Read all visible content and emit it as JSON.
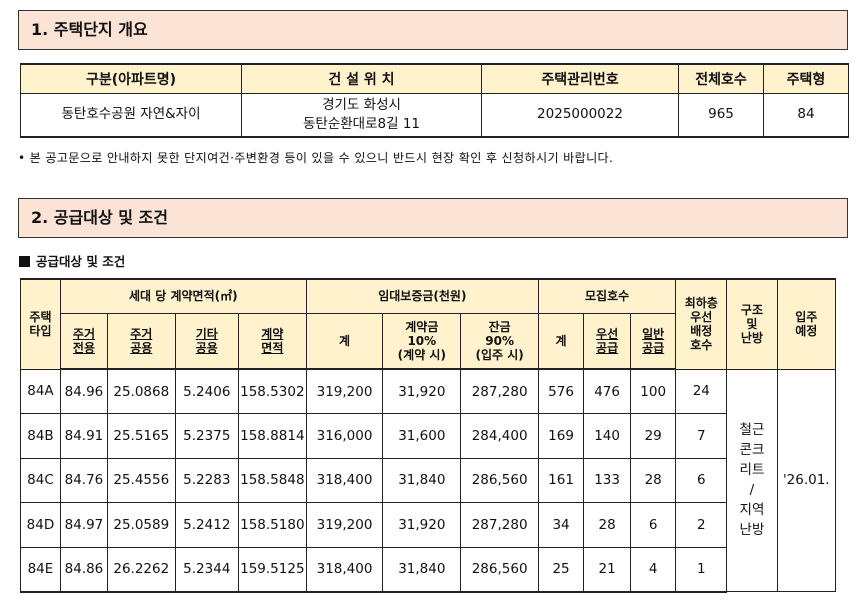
{
  "section1": {
    "title": "1. 주택단지 개요",
    "headers": [
      "구분(아파트명)",
      "건 설 위 치",
      "주택관리번호",
      "전체호수",
      "주택형"
    ],
    "row": {
      "name": "동탄호수공원 자연&자이",
      "location_line1": "경기도 화성시",
      "location_line2": "동탄순환대로8길 11",
      "management_no": "2025000022",
      "total_units": "965",
      "housing_type": "84"
    }
  },
  "notice": "• 본 공고문으로 안내하지 못한 단지여건·주변환경 등이 있을 수 있으니 반드시 현장 확인 후 신청하시기 바랍니다.",
  "section2": {
    "title": "2. 공급대상 및 조건",
    "subheading": "공급대상 및 조건",
    "headers": {
      "type": "주택\n타입",
      "area_group": "세대 당 계약면적(㎡)",
      "deposit_group": "임대보증금(천원)",
      "recruit_group": "모집호수",
      "lowest_floor": "최하층\n우선\n배정\n호수",
      "structure": "구조\n및\n난방",
      "move_in": "입주\n예정",
      "exclusive": "주거\n전용",
      "common_res": "주거\n공용",
      "other_common": "기타\n공용",
      "contract_area": "계약\n면적",
      "deposit_total": "계",
      "down_payment": "계약금\n10%\n(계약 시)",
      "balance": "잔금\n90%\n(입주 시)",
      "recruit_total": "계",
      "priority": "우선\n공급",
      "general": "일반\n공급"
    },
    "rows": [
      {
        "type": "84A",
        "exclusive": "84.96",
        "common_res": "25.0868",
        "other_common": "5.2406",
        "contract_area": "158.5302",
        "deposit_total": "319,200",
        "down_payment": "31,920",
        "balance": "287,280",
        "recruit_total": "576",
        "priority": "476",
        "general": "100",
        "lowest_floor": "24"
      },
      {
        "type": "84B",
        "exclusive": "84.91",
        "common_res": "25.5165",
        "other_common": "5.2375",
        "contract_area": "158.8814",
        "deposit_total": "316,000",
        "down_payment": "31,600",
        "balance": "284,400",
        "recruit_total": "169",
        "priority": "140",
        "general": "29",
        "lowest_floor": "7"
      },
      {
        "type": "84C",
        "exclusive": "84.76",
        "common_res": "25.4556",
        "other_common": "5.2283",
        "contract_area": "158.5848",
        "deposit_total": "318,400",
        "down_payment": "31,840",
        "balance": "286,560",
        "recruit_total": "161",
        "priority": "133",
        "general": "28",
        "lowest_floor": "6"
      },
      {
        "type": "84D",
        "exclusive": "84.97",
        "common_res": "25.0589",
        "other_common": "5.2412",
        "contract_area": "158.5180",
        "deposit_total": "319,200",
        "down_payment": "31,920",
        "balance": "287,280",
        "recruit_total": "34",
        "priority": "28",
        "general": "6",
        "lowest_floor": "2"
      },
      {
        "type": "84E",
        "exclusive": "84.86",
        "common_res": "26.2262",
        "other_common": "5.2344",
        "contract_area": "159.5125",
        "deposit_total": "318,400",
        "down_payment": "31,840",
        "balance": "286,560",
        "recruit_total": "25",
        "priority": "21",
        "general": "4",
        "lowest_floor": "1"
      }
    ],
    "structure_value": "철근\n콘크\n리트\n/\n지역\n난방",
    "move_in_value": "'26.01."
  }
}
